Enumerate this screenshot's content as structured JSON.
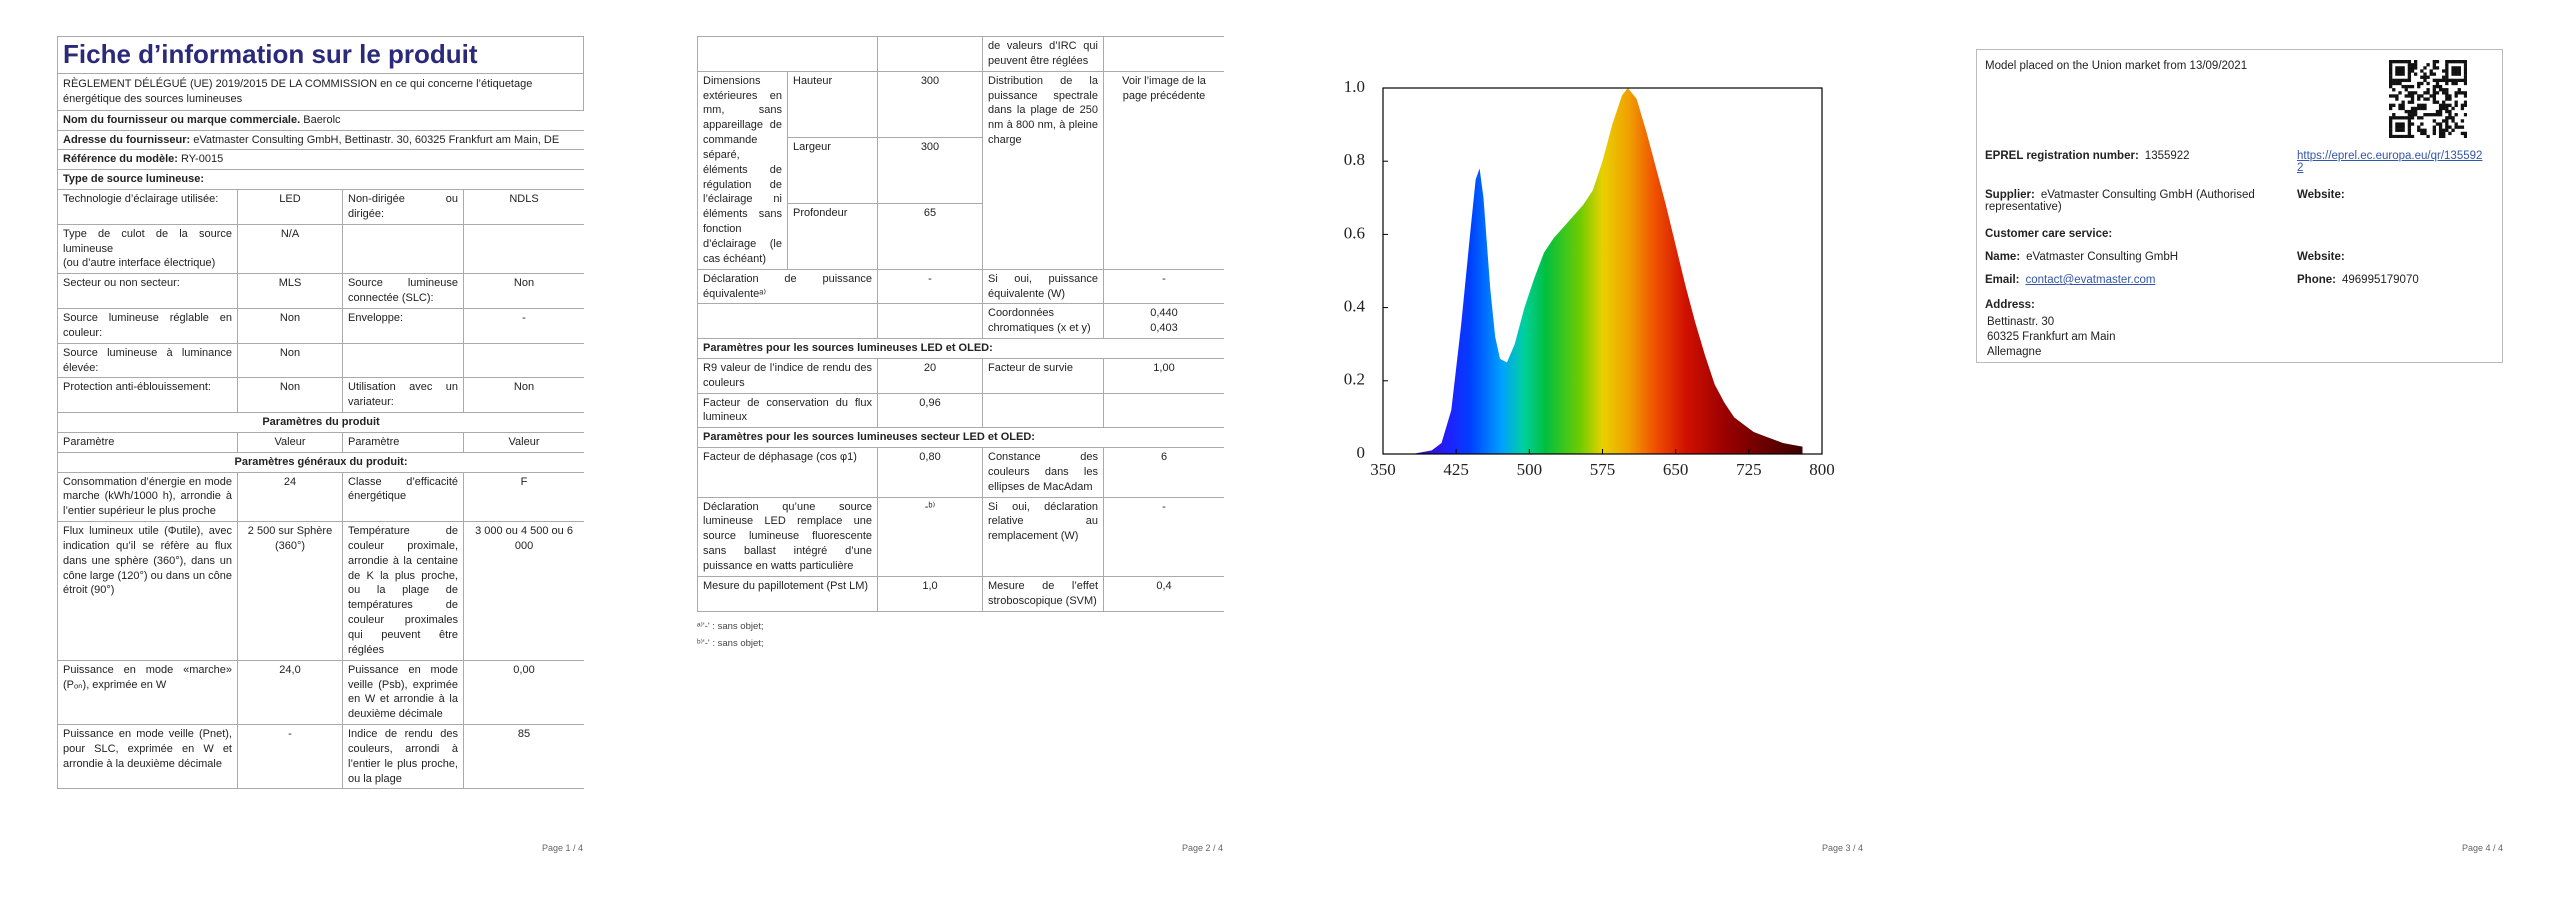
{
  "page1": {
    "title": "Fiche d’information sur le produit",
    "subtitle": "RÈGLEMENT DÉLÉGUÉ (UE) 2019/2015 DE LA COMMISSION en ce qui concerne l’étiquetage énergétique des sources lumineuses",
    "rows": [
      {
        "label": "Nom du fournisseur ou marque commerciale.",
        "value": "Baerolc"
      },
      {
        "label": "Adresse du fournisseur:",
        "value": "eVatmaster Consulting GmbH, Bettinastr. 30, 60325 Frankfurt am Main, DE"
      },
      {
        "label": "Référence du modèle:",
        "value": "RY-0015"
      },
      {
        "heading": "Type de source lumineuse:",
        "align": "left"
      },
      [
        "Technologie d’éclairage utilisée:",
        "LED",
        "Non-dirigée ou dirigée:",
        "NDLS"
      ],
      [
        "Type de culot de la source lumineuse\n(ou d’autre interface électrique)",
        "N/A",
        null,
        null
      ],
      [
        "Secteur ou non secteur:",
        "MLS",
        "Source lumineuse connectée (SLC):",
        "Non"
      ],
      [
        "Source lumineuse réglable en couleur:",
        "Non",
        "Enveloppe:",
        "-"
      ],
      [
        "Source lumineuse à luminance élevée:",
        "Non",
        null,
        null
      ],
      [
        "Protection anti-éblouissement:",
        "Non",
        "Utilisation avec un variateur:",
        "Non"
      ],
      {
        "heading": "Paramètres du produit",
        "align": "center"
      },
      [
        "Paramètre",
        "Valeur",
        "Paramètre",
        "Valeur"
      ],
      {
        "heading": "Paramètres généraux du produit:",
        "align": "center"
      },
      [
        "Consommation d’énergie en mode marche (kWh/1000 h), arrondie à l’entier supérieur le plus proche",
        "24",
        "Classe d’efficacité énergétique",
        "F"
      ],
      [
        "Flux lumineux utile (Φutile), avec indication qu’il se réfère au flux dans une sphère (360°), dans un cône large (120°) ou dans un cône étroit (90°)",
        "2 500 sur Sphère (360°)",
        "Température de couleur proximale, arrondie à la centaine de K la plus proche, ou la plage de températures de couleur proximales qui peuvent être réglées",
        "3 000 ou 4 500 ou 6 000"
      ],
      [
        "Puissance en mode «marche» (Pₒₙ), exprimée en W",
        "24,0",
        "Puissance en mode veille (Psb), exprimée en W et arrondie à la deuxième décimale",
        "0,00"
      ],
      [
        "Puissance en mode veille (Pnet), pour SLC, exprimée en W et arrondie à la deuxième décimale",
        "-",
        "Indice de rendu des couleurs, arrondi à l’entier le plus proche, ou la plage",
        "85"
      ]
    ],
    "footer": "Page 1 / 4"
  },
  "page2": {
    "rows": [
      [
        null,
        null,
        "de valeurs d’IRC qui peuvent être réglées",
        null
      ],
      {
        "dims": "Dimensions extérieures en mm, sans appareillage de commande séparé, éléments de régulation de l’éclairage ni éléments sans fonction d’éclairage (le cas échéant)",
        "sub": [
          [
            "Hauteur",
            "300"
          ],
          [
            "Largeur",
            "300"
          ],
          [
            "Profondeur",
            "65"
          ]
        ],
        "label2": "Distribution de la puissance spectrale dans la plage de 250 nm à 800 nm, à pleine charge",
        "value2": "Voir l’image de la page précédente"
      },
      [
        "Déclaration de puissance équivalenteᵃ⁾",
        "-",
        "Si oui, puissance équivalente (W)",
        "-"
      ],
      [
        null,
        null,
        "Coordonnées chromatiques (x et y)",
        "0,440\n0,403"
      ],
      {
        "heading": "Paramètres pour les sources lumineuses LED et OLED:",
        "align": "left"
      },
      [
        "R9 valeur de l’indice de rendu des couleurs",
        "20",
        "Facteur de survie",
        "1,00"
      ],
      [
        "Facteur de conservation du flux lumineux",
        "0,96",
        null,
        null
      ],
      {
        "heading": "Paramètres pour les sources lumineuses secteur LED et OLED:",
        "align": "left"
      },
      [
        "Facteur de déphasage (cos φ1)",
        "0,80",
        "Constance des couleurs dans les ellipses de MacAdam",
        "6"
      ],
      [
        "Déclaration qu’une source lumineuse LED remplace une source lumineuse fluorescente sans ballast intégré d’une puissance en watts particulière",
        "-ᵇ⁾",
        "Si oui, déclaration relative au remplacement (W)",
        "-"
      ],
      [
        "Mesure du papillotement (Pst LM)",
        "1,0",
        "Mesure de l’effet stroboscopique (SVM)",
        "0,4"
      ]
    ],
    "footnotes": [
      "ᵃ⁾'-' : sans objet;",
      "ᵇ⁾'-' : sans objet;"
    ],
    "footer": "Page 2 / 4"
  },
  "chart_data": {
    "type": "area",
    "x": [
      380,
      400,
      410,
      420,
      430,
      440,
      445,
      449,
      453,
      460,
      465,
      470,
      477,
      485,
      495,
      505,
      515,
      525,
      535,
      545,
      555,
      565,
      575,
      585,
      595,
      601,
      610,
      620,
      630,
      640,
      650,
      660,
      670,
      680,
      690,
      700,
      710,
      720,
      730,
      740,
      750,
      760,
      770,
      780
    ],
    "values": [
      0.0,
      0.01,
      0.03,
      0.12,
      0.35,
      0.62,
      0.75,
      0.78,
      0.7,
      0.45,
      0.32,
      0.26,
      0.25,
      0.3,
      0.4,
      0.48,
      0.55,
      0.59,
      0.62,
      0.65,
      0.68,
      0.72,
      0.8,
      0.9,
      0.98,
      1.0,
      0.97,
      0.88,
      0.78,
      0.68,
      0.57,
      0.46,
      0.36,
      0.27,
      0.19,
      0.14,
      0.1,
      0.08,
      0.06,
      0.05,
      0.04,
      0.03,
      0.025,
      0.02
    ],
    "xlim": [
      350,
      800
    ],
    "xticks": [
      350,
      425,
      500,
      575,
      650,
      725,
      800
    ],
    "ylim": [
      0,
      1
    ],
    "yticks": [
      0,
      0.2,
      0.4,
      0.6,
      0.8,
      {
        "value": 1,
        "label": "1.0"
      }
    ],
    "color": "spectrum",
    "footer": "Page 3 / 4"
  },
  "page4": {
    "model": "Model placed on the Union market from 13/09/2021",
    "eprel_label": "EPREL registration number:",
    "eprel_value": "1355922",
    "eprel_link": "https://eprel.ec.europa.eu/qr/1355922",
    "supplier_label": "Supplier:",
    "supplier_value": "eVatmaster Consulting GmbH (Authorised representative)",
    "website_label": "Website:",
    "care_label": "Customer care service:",
    "name_label": "Name:",
    "name_value": "eVatmaster Consulting GmbH",
    "website_label_2": "Website:",
    "email_label": "Email:",
    "email_value": "contact@evatmaster.com",
    "phone_label": "Phone:",
    "phone_value": "496995179070",
    "address_label": "Address:",
    "address_lines": [
      "Bettinastr. 30",
      "60325 Frankfurt am Main",
      "Allemagne"
    ],
    "footer": "Page 4 / 4"
  }
}
